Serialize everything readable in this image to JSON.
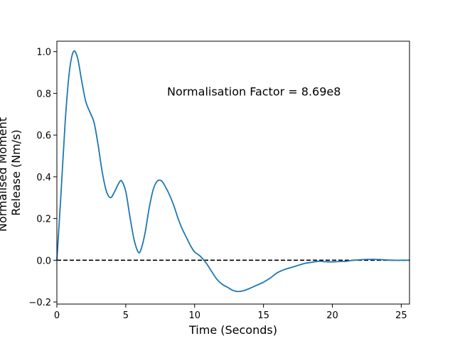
{
  "chart_data": {
    "type": "line",
    "title": "",
    "xlabel": "Time (Seconds)",
    "ylabel_lines": [
      "Normalised Moment",
      "Release (Nm/s)"
    ],
    "xlim": [
      0,
      25.6
    ],
    "ylim": [
      -0.21,
      1.05
    ],
    "x_ticks": [
      0,
      5,
      10,
      15,
      20,
      25
    ],
    "y_ticks": [
      -0.2,
      0.0,
      0.2,
      0.4,
      0.6,
      0.8,
      1.0
    ],
    "y_tick_labels": [
      "−0.2",
      "0.0",
      "0.2",
      "0.4",
      "0.6",
      "0.8",
      "1.0"
    ],
    "grid": false,
    "legend": "none",
    "annotation": {
      "text": "Normalisation Factor = 8.69e8",
      "x": 8.0,
      "y": 0.81
    },
    "reference_line": {
      "y": 0.0,
      "style": "dashed",
      "color": "#000000"
    },
    "series": [
      {
        "color": "#1f77b4",
        "x": [
          0,
          0.3,
          0.6,
          0.9,
          1.2,
          1.5,
          1.8,
          2.1,
          2.4,
          2.7,
          3.0,
          3.3,
          3.6,
          3.9,
          4.2,
          4.5,
          4.7,
          5.0,
          5.3,
          5.6,
          5.9,
          6.1,
          6.4,
          6.7,
          7.0,
          7.3,
          7.6,
          7.9,
          8.2,
          8.5,
          8.8,
          9.1,
          9.4,
          9.7,
          10.0,
          10.4,
          10.8,
          11.2,
          11.6,
          12.0,
          12.4,
          12.8,
          13.2,
          13.6,
          14.0,
          14.5,
          15.0,
          15.5,
          16.0,
          16.5,
          17.0,
          17.5,
          18.0,
          18.5,
          19.0,
          19.5,
          20.0,
          20.5,
          21.0,
          21.5,
          22.0,
          22.5,
          23.0,
          23.5,
          24.0,
          24.5,
          25.0,
          25.6
        ],
        "y": [
          0.0,
          0.32,
          0.66,
          0.9,
          1.0,
          0.97,
          0.86,
          0.76,
          0.71,
          0.66,
          0.55,
          0.42,
          0.33,
          0.3,
          0.33,
          0.37,
          0.38,
          0.33,
          0.21,
          0.1,
          0.04,
          0.05,
          0.13,
          0.25,
          0.34,
          0.38,
          0.38,
          0.35,
          0.31,
          0.26,
          0.2,
          0.15,
          0.11,
          0.07,
          0.04,
          0.02,
          -0.01,
          -0.05,
          -0.09,
          -0.115,
          -0.13,
          -0.145,
          -0.15,
          -0.145,
          -0.135,
          -0.12,
          -0.105,
          -0.085,
          -0.06,
          -0.045,
          -0.035,
          -0.025,
          -0.015,
          -0.01,
          -0.005,
          -0.007,
          -0.008,
          -0.006,
          -0.005,
          0.0,
          0.002,
          0.004,
          0.004,
          0.003,
          0.001,
          0.0,
          0.0,
          0.0
        ]
      }
    ]
  }
}
